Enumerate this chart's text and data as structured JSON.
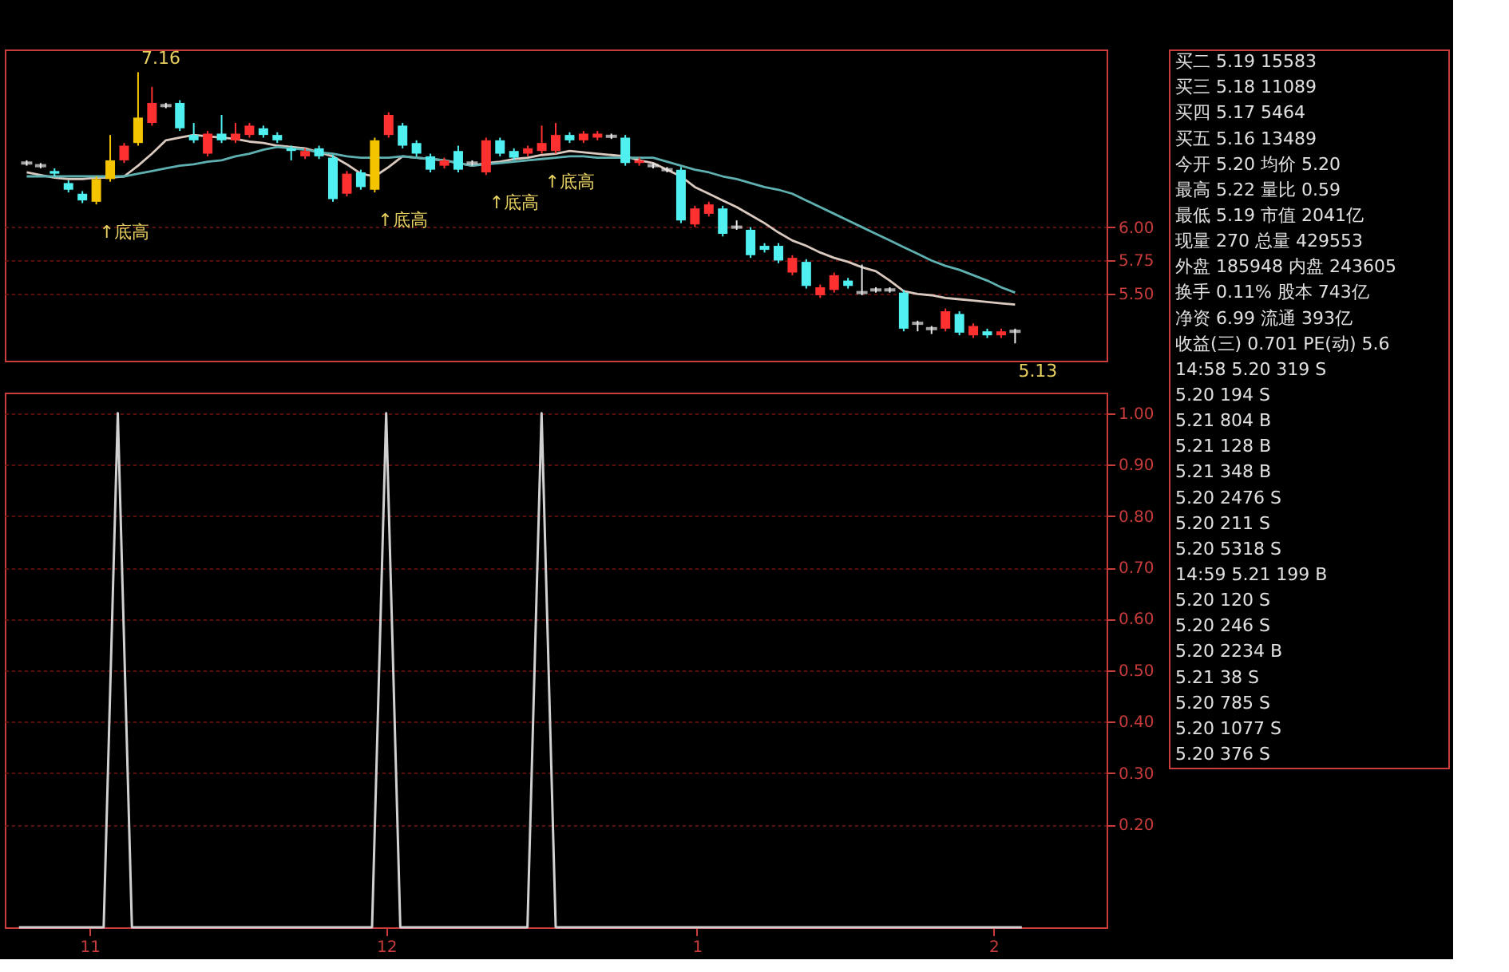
{
  "chart_data": [
    {
      "type": "candlestick",
      "categories": [
        null,
        null,
        null,
        null,
        null,
        null,
        null,
        null,
        null,
        null,
        null,
        null,
        null,
        null,
        null,
        null,
        null,
        null,
        null,
        null,
        null,
        null,
        null,
        null,
        null,
        null,
        null,
        null,
        null,
        null,
        null,
        null,
        null,
        null,
        null,
        null,
        null,
        null,
        null,
        null,
        null,
        null,
        null,
        null,
        null,
        null,
        null,
        null,
        null,
        null,
        null,
        null,
        null,
        null,
        null,
        null,
        null,
        null,
        null,
        null,
        null,
        null,
        null,
        null,
        null,
        null,
        null,
        null,
        null,
        null,
        null,
        null
      ],
      "ohlc": [
        [
          6.48,
          6.5,
          6.46,
          6.48
        ],
        [
          6.46,
          6.48,
          6.44,
          6.46
        ],
        [
          6.42,
          6.44,
          6.38,
          6.4
        ],
        [
          6.33,
          6.35,
          6.26,
          6.28
        ],
        [
          6.25,
          6.27,
          6.18,
          6.2
        ],
        [
          6.19,
          6.38,
          6.17,
          6.36
        ],
        [
          6.36,
          6.69,
          6.34,
          6.5
        ],
        [
          6.5,
          6.63,
          6.48,
          6.61
        ],
        [
          6.63,
          7.16,
          6.61,
          6.82
        ],
        [
          6.78,
          7.05,
          6.76,
          6.93
        ],
        [
          6.91,
          6.93,
          6.89,
          6.91
        ],
        [
          6.93,
          6.95,
          6.72,
          6.74
        ],
        [
          6.69,
          6.78,
          6.63,
          6.65
        ],
        [
          6.55,
          6.72,
          6.53,
          6.7
        ],
        [
          6.7,
          6.84,
          6.63,
          6.65
        ],
        [
          6.65,
          6.78,
          6.63,
          6.7
        ],
        [
          6.69,
          6.78,
          6.67,
          6.76
        ],
        [
          6.74,
          6.76,
          6.67,
          6.69
        ],
        [
          6.69,
          6.71,
          6.63,
          6.65
        ],
        [
          6.59,
          6.61,
          6.5,
          6.57
        ],
        [
          6.53,
          6.59,
          6.51,
          6.57
        ],
        [
          6.59,
          6.61,
          6.51,
          6.53
        ],
        [
          6.52,
          6.54,
          6.19,
          6.21
        ],
        [
          6.25,
          6.42,
          6.23,
          6.4
        ],
        [
          6.41,
          6.43,
          6.28,
          6.3
        ],
        [
          6.28,
          6.67,
          6.26,
          6.65
        ],
        [
          6.69,
          6.86,
          6.67,
          6.84
        ],
        [
          6.76,
          6.78,
          6.59,
          6.61
        ],
        [
          6.63,
          6.65,
          6.53,
          6.55
        ],
        [
          6.53,
          6.55,
          6.41,
          6.43
        ],
        [
          6.46,
          6.52,
          6.44,
          6.5
        ],
        [
          6.57,
          6.61,
          6.41,
          6.43
        ],
        [
          6.48,
          6.5,
          6.46,
          6.48
        ],
        [
          6.41,
          6.67,
          6.39,
          6.65
        ],
        [
          6.65,
          6.67,
          6.53,
          6.55
        ],
        [
          6.57,
          6.59,
          6.5,
          6.52
        ],
        [
          6.55,
          6.61,
          6.53,
          6.59
        ],
        [
          6.57,
          6.76,
          6.55,
          6.63
        ],
        [
          6.57,
          6.78,
          6.55,
          6.69
        ],
        [
          6.69,
          6.71,
          6.63,
          6.65
        ],
        [
          6.65,
          6.72,
          6.63,
          6.7
        ],
        [
          6.67,
          6.72,
          6.65,
          6.7
        ],
        [
          6.68,
          6.7,
          6.66,
          6.68
        ],
        [
          6.67,
          6.69,
          6.46,
          6.48
        ],
        [
          6.48,
          6.52,
          6.46,
          6.5
        ],
        [
          6.46,
          6.48,
          6.44,
          6.46
        ],
        [
          6.43,
          6.45,
          6.41,
          6.43
        ],
        [
          6.43,
          6.45,
          6.03,
          6.05
        ],
        [
          6.02,
          6.16,
          6.0,
          6.14
        ],
        [
          6.1,
          6.19,
          6.08,
          6.17
        ],
        [
          6.14,
          6.16,
          5.93,
          5.95
        ],
        [
          6.0,
          6.05,
          5.98,
          6.0
        ],
        [
          5.98,
          6.0,
          5.77,
          5.79
        ],
        [
          5.86,
          5.88,
          5.81,
          5.83
        ],
        [
          5.86,
          5.88,
          5.73,
          5.75
        ],
        [
          5.66,
          5.79,
          5.64,
          5.77
        ],
        [
          5.74,
          5.76,
          5.54,
          5.56
        ],
        [
          5.49,
          5.57,
          5.47,
          5.55
        ],
        [
          5.53,
          5.66,
          5.51,
          5.64
        ],
        [
          5.6,
          5.62,
          5.54,
          5.56
        ],
        [
          5.51,
          5.72,
          5.49,
          5.51
        ],
        [
          5.53,
          5.55,
          5.51,
          5.53
        ],
        [
          5.53,
          5.55,
          5.51,
          5.53
        ],
        [
          5.51,
          5.53,
          5.22,
          5.24
        ],
        [
          5.28,
          5.3,
          5.22,
          5.28
        ],
        [
          5.24,
          5.26,
          5.2,
          5.24
        ],
        [
          5.24,
          5.39,
          5.22,
          5.37
        ],
        [
          5.35,
          5.37,
          5.19,
          5.21
        ],
        [
          5.19,
          5.28,
          5.17,
          5.26
        ],
        [
          5.22,
          5.24,
          5.17,
          5.19
        ],
        [
          5.19,
          5.24,
          5.17,
          5.22
        ],
        [
          5.22,
          5.24,
          5.13,
          5.22
        ]
      ],
      "colors": [
        "#e8e8e8",
        "#e8e8e8",
        "#50f0f0",
        "#50f0f0",
        "#50f0f0",
        "#f5c400",
        "#f5c400",
        "#ff3030",
        "#f5c400",
        "#ff3030",
        "#e8e8e8",
        "#50f0f0",
        "#50f0f0",
        "#ff3030",
        "#50f0f0",
        "#ff3030",
        "#ff3030",
        "#50f0f0",
        "#50f0f0",
        "#50f0f0",
        "#ff3030",
        "#50f0f0",
        "#50f0f0",
        "#ff3030",
        "#50f0f0",
        "#f5c400",
        "#ff3030",
        "#50f0f0",
        "#50f0f0",
        "#50f0f0",
        "#ff3030",
        "#50f0f0",
        "#e8e8e8",
        "#ff3030",
        "#50f0f0",
        "#50f0f0",
        "#ff3030",
        "#ff3030",
        "#ff3030",
        "#50f0f0",
        "#ff3030",
        "#ff3030",
        "#e8e8e8",
        "#50f0f0",
        "#ff3030",
        "#e8e8e8",
        "#e8e8e8",
        "#50f0f0",
        "#ff3030",
        "#ff3030",
        "#50f0f0",
        "#e8e8e8",
        "#50f0f0",
        "#50f0f0",
        "#50f0f0",
        "#ff3030",
        "#50f0f0",
        "#ff3030",
        "#ff3030",
        "#50f0f0",
        "#e8e8e8",
        "#e8e8e8",
        "#e8e8e8",
        "#50f0f0",
        "#e8e8e8",
        "#e8e8e8",
        "#ff3030",
        "#50f0f0",
        "#ff3030",
        "#50f0f0",
        "#ff3030",
        "#e8e8e8"
      ],
      "value_labels": [
        null,
        null,
        null,
        null,
        null,
        "↑底高",
        null,
        null,
        "7.16",
        null,
        null,
        null,
        null,
        null,
        null,
        null,
        null,
        null,
        null,
        null,
        null,
        null,
        null,
        null,
        null,
        "↑底高",
        null,
        null,
        null,
        null,
        null,
        null,
        null,
        "↑底高",
        null,
        null,
        null,
        "↑底高",
        null,
        null,
        null,
        null,
        null,
        null,
        null,
        null,
        null,
        null,
        null,
        null,
        null,
        null,
        null,
        null,
        null,
        null,
        null,
        null,
        null,
        null,
        null,
        null,
        null,
        null,
        null,
        null,
        null,
        null,
        null,
        null,
        null,
        "5.13"
      ],
      "series": [
        {
          "type": "line",
          "color": "#d9c9bf",
          "values": [
            6.41,
            6.39,
            6.37,
            6.36,
            6.36,
            6.37,
            6.37,
            6.38,
            6.46,
            6.55,
            6.65,
            6.67,
            6.69,
            6.68,
            6.67,
            6.66,
            6.64,
            6.63,
            6.61,
            6.6,
            6.59,
            6.56,
            6.53,
            6.47,
            6.4,
            6.38,
            6.45,
            6.53,
            6.52,
            6.51,
            6.5,
            6.48,
            6.46,
            6.48,
            6.49,
            6.51,
            6.52,
            6.54,
            6.55,
            6.57,
            6.56,
            6.55,
            6.54,
            6.53,
            6.5,
            6.48,
            6.43,
            6.38,
            6.3,
            6.25,
            6.2,
            6.15,
            6.09,
            6.03,
            5.96,
            5.9,
            5.86,
            5.81,
            5.77,
            5.74,
            5.7,
            5.67,
            5.6,
            5.52,
            5.5,
            5.49,
            5.47,
            5.46,
            5.45,
            5.44,
            5.43,
            5.42
          ]
        },
        {
          "type": "line",
          "color": "#5fb0b0",
          "values": [
            6.38,
            6.38,
            6.38,
            6.38,
            6.38,
            6.38,
            6.38,
            6.38,
            6.4,
            6.42,
            6.44,
            6.46,
            6.47,
            6.49,
            6.5,
            6.53,
            6.55,
            6.58,
            6.6,
            6.59,
            6.58,
            6.56,
            6.55,
            6.53,
            6.52,
            6.52,
            6.52,
            6.53,
            6.52,
            6.51,
            6.5,
            6.48,
            6.46,
            6.47,
            6.48,
            6.49,
            6.5,
            6.51,
            6.52,
            6.53,
            6.53,
            6.52,
            6.52,
            6.52,
            6.52,
            6.52,
            6.49,
            6.46,
            6.43,
            6.41,
            6.38,
            6.36,
            6.33,
            6.3,
            6.28,
            6.25,
            6.2,
            6.15,
            6.1,
            6.05,
            6.0,
            5.95,
            5.9,
            5.85,
            5.8,
            5.75,
            5.71,
            5.68,
            5.64,
            5.6,
            5.55,
            5.51
          ]
        }
      ],
      "ylim": [
        5.0,
        7.33
      ],
      "yticks": [
        {
          "value": 5.5,
          "label": "5.50"
        },
        {
          "value": 5.75,
          "label": "5.75"
        },
        {
          "value": 6.0,
          "label": "6.00"
        }
      ],
      "tick_labels": "y",
      "grid": "y"
    },
    {
      "type": "line",
      "categories": [
        null,
        null,
        null,
        null,
        null,
        "11",
        null,
        null,
        null,
        null,
        null,
        null,
        null,
        null,
        null,
        null,
        null,
        null,
        null,
        null,
        null,
        null,
        null,
        null,
        null,
        null,
        "12",
        null,
        null,
        null,
        null,
        null,
        null,
        null,
        null,
        null,
        null,
        null,
        null,
        null,
        null,
        null,
        null,
        null,
        null,
        null,
        null,
        null,
        "1",
        null,
        null,
        null,
        null,
        null,
        null,
        null,
        null,
        null,
        null,
        null,
        null,
        null,
        null,
        null,
        null,
        null,
        null,
        null,
        null,
        "2",
        null,
        null
      ],
      "values": [
        0,
        0,
        0,
        0,
        0,
        0,
        0,
        1,
        0,
        0,
        0,
        0,
        0,
        0,
        0,
        0,
        0,
        0,
        0,
        0,
        0,
        0,
        0,
        0,
        0,
        0,
        1,
        0,
        0,
        0,
        0,
        0,
        0,
        0,
        0,
        0,
        0,
        1,
        0,
        0,
        0,
        0,
        0,
        0,
        0,
        0,
        0,
        0,
        0,
        0,
        0,
        0,
        0,
        0,
        0,
        0,
        0,
        0,
        0,
        0,
        0,
        0,
        0,
        0,
        0,
        0,
        0,
        0,
        0,
        0,
        0,
        0
      ],
      "color": "#d0d0d0",
      "ylim": [
        0,
        1.04
      ],
      "yticks": [
        {
          "value": 0.2,
          "label": "0.20"
        },
        {
          "value": 0.3,
          "label": "0.30"
        },
        {
          "value": 0.4,
          "label": "0.40"
        },
        {
          "value": 0.5,
          "label": "0.50"
        },
        {
          "value": 0.6,
          "label": "0.60"
        },
        {
          "value": 0.7,
          "label": "0.70"
        },
        {
          "value": 0.8,
          "label": "0.80"
        },
        {
          "value": 0.9,
          "label": "0.90"
        },
        {
          "value": 1.0,
          "label": "1.00"
        }
      ],
      "grid": "y"
    },
    {
      "type": "other",
      "annotations": [
        "买二 5.19 15583",
        "买三 5.18 11089",
        "买四 5.17 5464",
        "买五 5.16 13489",
        "今开 5.20 均价 5.20",
        "最高 5.22 量比 0.59",
        "最低 5.19 市值 2041亿",
        "现量 270 总量 429553",
        "外盘 185948 内盘 243605",
        "换手 0.11% 股本 743亿",
        "净资 6.99 流通 393亿",
        "收益(三) 0.701 PE(动) 5.6",
        "14:58 5.20 319 S",
        "5.20 194 S",
        "5.21 804 B",
        "5.21 128 B",
        "5.21 348 B",
        "5.20 2476 S",
        "5.20 211 S",
        "5.20 5318 S",
        "14:59 5.21 199 B",
        "5.20 120 S",
        "5.20 246 S",
        "5.20 2234 B",
        "5.21 38 S",
        "5.20 785 S",
        "5.20 1077 S",
        "5.20 376 S"
      ]
    }
  ]
}
